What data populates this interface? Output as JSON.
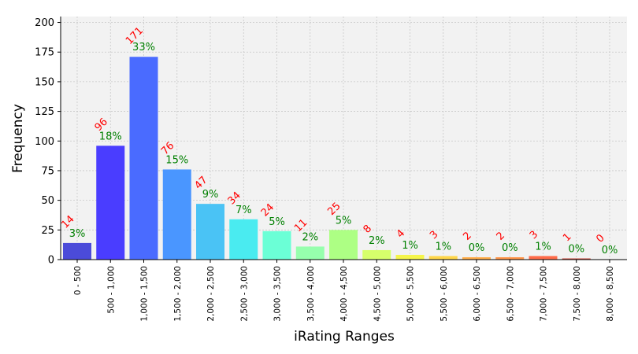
{
  "chart_data": {
    "type": "bar",
    "xlabel": "iRating Ranges",
    "ylabel": "Frequency",
    "ylim": [
      0,
      205
    ],
    "yticks": [
      0,
      25,
      50,
      75,
      100,
      125,
      150,
      175,
      200
    ],
    "grid": true,
    "categories": [
      "0 - 500",
      "500 - 1,000",
      "1,000 - 1,500",
      "1,500 - 2,000",
      "2,000 - 2,500",
      "2,500 - 3,000",
      "3,000 - 3,500",
      "3,500 - 4,000",
      "4,000 - 4,500",
      "4,500 - 5,000",
      "5,000 - 5,500",
      "5,500 - 6,000",
      "6,000 - 6,500",
      "6,500 - 7,000",
      "7,000 - 7,500",
      "7,500 - 8,000",
      "8,000 - 8,500"
    ],
    "values": [
      14,
      96,
      171,
      76,
      47,
      34,
      24,
      11,
      25,
      8,
      4,
      3,
      2,
      2,
      3,
      1,
      0
    ],
    "count_labels": [
      "14",
      "96",
      "171",
      "76",
      "47",
      "34",
      "24",
      "11",
      "25",
      "8",
      "4",
      "3",
      "2",
      "2",
      "3",
      "1",
      "0"
    ],
    "percent_labels": [
      "3%",
      "18%",
      "33%",
      "15%",
      "9%",
      "7%",
      "5%",
      "2%",
      "5%",
      "2%",
      "1%",
      "1%",
      "0%",
      "0%",
      "1%",
      "0%",
      "0%"
    ],
    "colors": [
      "#4b4bd9",
      "#4a3dff",
      "#4a6bff",
      "#4a96ff",
      "#4ac3f5",
      "#4aebf0",
      "#6bffd6",
      "#96ffad",
      "#adff84",
      "#d6ff6b",
      "#f5f54a",
      "#ffd64a",
      "#ffad4a",
      "#ff964a",
      "#ff6b4a",
      "#c94a3d",
      "#ff0000"
    ],
    "count_label_color": "#ff0000",
    "percent_label_color": "#008000"
  }
}
